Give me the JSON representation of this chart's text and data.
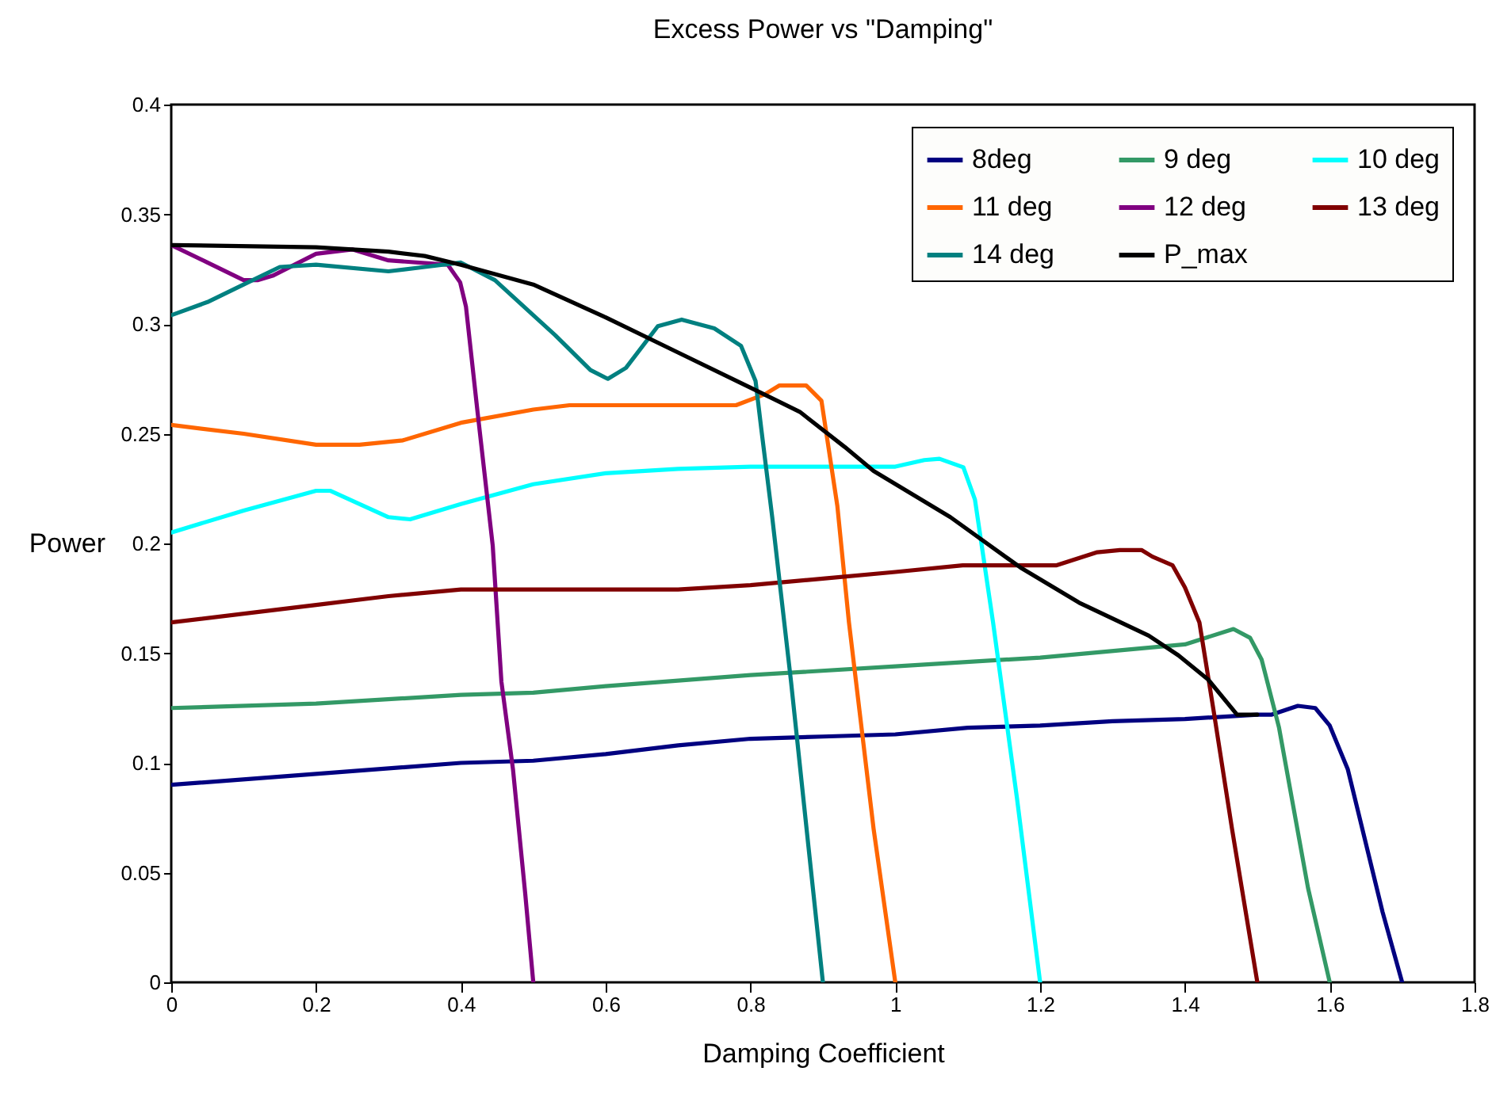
{
  "chart_data": {
    "type": "line",
    "title": "Excess Power vs \"Damping\"",
    "xlabel": "Damping Coefficient",
    "ylabel": "Power",
    "xlim": [
      0,
      1.8
    ],
    "xticks": [
      0,
      0.2,
      0.4,
      0.6,
      0.8,
      1,
      1.2,
      1.4,
      1.6,
      1.8
    ],
    "ylim": [
      0,
      0.4
    ],
    "yticks": [
      0,
      0.05,
      0.1,
      0.15,
      0.2,
      0.25,
      0.3,
      0.35,
      0.4
    ],
    "grid": false,
    "legend": "top right",
    "marker": "none",
    "line_style": "solid",
    "series": [
      {
        "name": "8deg",
        "color": "#000080",
        "x": [
          0,
          0.2,
          0.4,
          0.5,
          0.6,
          0.7,
          0.8,
          0.9,
          1.0,
          1.1,
          1.2,
          1.3,
          1.4,
          1.5,
          1.52,
          1.556,
          1.58,
          1.6,
          1.625,
          1.673,
          1.7
        ],
        "values": [
          0.09,
          0.095,
          0.1,
          0.101,
          0.104,
          0.108,
          0.111,
          0.112,
          0.113,
          0.116,
          0.117,
          0.119,
          0.12,
          0.122,
          0.122,
          0.126,
          0.125,
          0.117,
          0.097,
          0.032,
          0
        ]
      },
      {
        "name": "9 deg",
        "color": "#339966",
        "x": [
          0,
          0.2,
          0.4,
          0.5,
          0.6,
          0.8,
          1.0,
          1.2,
          1.4,
          1.467,
          1.49,
          1.506,
          1.53,
          1.57,
          1.6
        ],
        "values": [
          0.125,
          0.127,
          0.131,
          0.132,
          0.135,
          0.14,
          0.144,
          0.148,
          0.154,
          0.161,
          0.157,
          0.147,
          0.116,
          0.043,
          0
        ]
      },
      {
        "name": "10 deg",
        "color": "#00ffff",
        "x": [
          0,
          0.1,
          0.2,
          0.22,
          0.3,
          0.33,
          0.4,
          0.5,
          0.6,
          0.7,
          0.8,
          1.0,
          1.04,
          1.061,
          1.094,
          1.11,
          1.135,
          1.168,
          1.2
        ],
        "values": [
          0.205,
          0.215,
          0.224,
          0.224,
          0.212,
          0.211,
          0.218,
          0.227,
          0.232,
          0.234,
          0.235,
          0.235,
          0.238,
          0.2386,
          0.2347,
          0.22,
          0.164,
          0.084,
          0
        ]
      },
      {
        "name": "11 deg",
        "color": "#ff6600",
        "x": [
          0,
          0.1,
          0.2,
          0.26,
          0.32,
          0.4,
          0.5,
          0.55,
          0.78,
          0.82,
          0.84,
          0.877,
          0.898,
          0.92,
          0.936,
          0.97,
          1.0
        ],
        "values": [
          0.254,
          0.25,
          0.245,
          0.245,
          0.247,
          0.255,
          0.261,
          0.263,
          0.263,
          0.268,
          0.272,
          0.272,
          0.265,
          0.217,
          0.164,
          0.07,
          0
        ]
      },
      {
        "name": "12 deg",
        "color": "#800080",
        "x": [
          0,
          0.05,
          0.1,
          0.12,
          0.14,
          0.2,
          0.25,
          0.3,
          0.382,
          0.399,
          0.407,
          0.423,
          0.444,
          0.456,
          0.472,
          0.489,
          0.5
        ],
        "values": [
          0.336,
          0.328,
          0.32,
          0.32,
          0.322,
          0.332,
          0.334,
          0.329,
          0.327,
          0.319,
          0.308,
          0.26,
          0.199,
          0.137,
          0.097,
          0.04,
          0
        ]
      },
      {
        "name": "13 deg",
        "color": "#800000",
        "x": [
          0,
          0.2,
          0.3,
          0.4,
          0.5,
          0.7,
          0.8,
          0.9,
          1.0,
          1.093,
          1.222,
          1.279,
          1.31,
          1.34,
          1.355,
          1.383,
          1.4,
          1.42,
          1.44,
          1.465,
          1.5
        ],
        "values": [
          0.164,
          0.172,
          0.176,
          0.179,
          0.179,
          0.179,
          0.181,
          0.184,
          0.187,
          0.19,
          0.19,
          0.196,
          0.197,
          0.197,
          0.194,
          0.19,
          0.18,
          0.164,
          0.123,
          0.07,
          0
        ]
      },
      {
        "name": "14 deg",
        "color": "#008080",
        "x": [
          0,
          0.05,
          0.1,
          0.15,
          0.2,
          0.3,
          0.35,
          0.4,
          0.447,
          0.5,
          0.53,
          0.579,
          0.603,
          0.628,
          0.672,
          0.705,
          0.75,
          0.787,
          0.807,
          0.815,
          0.83,
          0.856,
          0.88,
          0.9
        ],
        "values": [
          0.304,
          0.31,
          0.318,
          0.326,
          0.327,
          0.324,
          0.326,
          0.328,
          0.32,
          0.304,
          0.295,
          0.279,
          0.275,
          0.28,
          0.299,
          0.302,
          0.298,
          0.29,
          0.274,
          0.252,
          0.212,
          0.137,
          0.062,
          0
        ]
      },
      {
        "name": "P_max",
        "color": "#000000",
        "x": [
          0,
          0.2,
          0.3,
          0.35,
          0.4,
          0.5,
          0.6,
          0.7,
          0.8,
          0.868,
          0.93,
          0.97,
          1.076,
          1.173,
          1.254,
          1.35,
          1.391,
          1.432,
          1.472,
          1.5
        ],
        "values": [
          0.336,
          0.335,
          0.333,
          0.331,
          0.327,
          0.318,
          0.303,
          0.287,
          0.271,
          0.26,
          0.244,
          0.233,
          0.212,
          0.189,
          0.173,
          0.158,
          0.149,
          0.138,
          0.122,
          0.122
        ]
      }
    ]
  }
}
